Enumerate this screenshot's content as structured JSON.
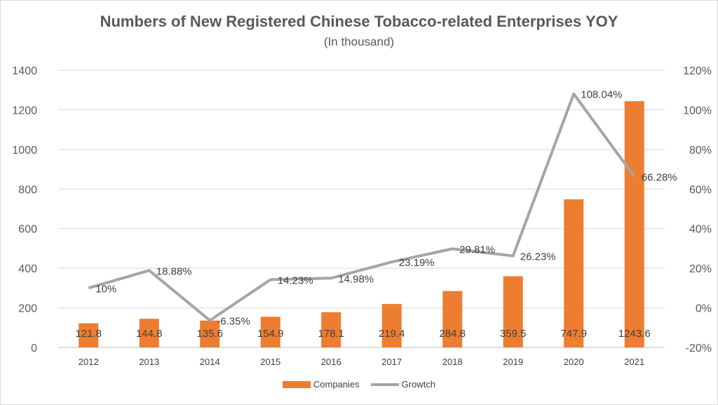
{
  "chart_data": {
    "type": "bar",
    "title": "Numbers of New Registered Chinese Tobacco-related Enterprises YOY",
    "subtitle": "(In thousand)",
    "categories": [
      "2012",
      "2013",
      "2014",
      "2015",
      "2016",
      "2017",
      "2018",
      "2019",
      "2020",
      "2021"
    ],
    "series": [
      {
        "name": "Companies",
        "type": "bar",
        "axis": "left",
        "values": [
          121.8,
          144.8,
          135.6,
          154.9,
          178.1,
          219.4,
          284.8,
          359.5,
          747.9,
          1243.6
        ],
        "labels": [
          "121.8",
          "144.8",
          "135.6",
          "154.9",
          "178.1",
          "219.4",
          "284.8",
          "359.5",
          "747.9",
          "1243.6"
        ],
        "color": "#ED7D31"
      },
      {
        "name": "Growtch",
        "type": "line",
        "axis": "right",
        "values": [
          10,
          18.88,
          -6.35,
          14.23,
          14.98,
          23.19,
          29.81,
          26.23,
          108.04,
          66.28
        ],
        "labels": [
          "10%",
          "18.88%",
          "-6.35%",
          "14.23%",
          "14.98%",
          "23.19%",
          "29.81%",
          "26.23%",
          "108.04%",
          "66.28%"
        ],
        "color": "#A5A5A5"
      }
    ],
    "y_left": {
      "min": 0,
      "max": 1400,
      "ticks": [
        "0",
        "200",
        "400",
        "600",
        "800",
        "1000",
        "1200",
        "1400"
      ]
    },
    "y_right": {
      "min": -20,
      "max": 120,
      "ticks": [
        "-20%",
        "0%",
        "20%",
        "40%",
        "60%",
        "80%",
        "100%",
        "120%"
      ]
    },
    "grid": true,
    "legend_position": "bottom"
  }
}
